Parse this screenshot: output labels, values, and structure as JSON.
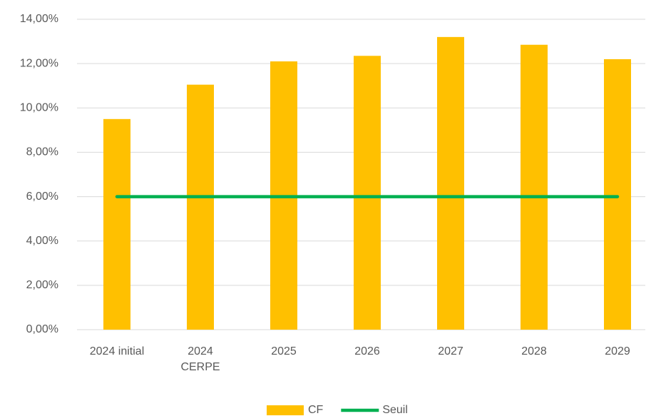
{
  "chart_data": {
    "type": "bar",
    "categories": [
      "2024 initial",
      "2024\nCERPE",
      "2025",
      "2026",
      "2027",
      "2028",
      "2029"
    ],
    "series": [
      {
        "name": "CF",
        "type": "bar",
        "color": "#ffc000",
        "values": [
          9.5,
          11.05,
          12.1,
          12.35,
          13.2,
          12.85,
          12.2
        ]
      },
      {
        "name": "Seuil",
        "type": "line",
        "color": "#00b050",
        "values": [
          6,
          6,
          6,
          6,
          6,
          6,
          6
        ]
      }
    ],
    "ylim": [
      0,
      14
    ],
    "yticks": [
      {
        "value": 0,
        "label": "0,00%"
      },
      {
        "value": 2,
        "label": "2,00%"
      },
      {
        "value": 4,
        "label": "4,00%"
      },
      {
        "value": 6,
        "label": "6,00%"
      },
      {
        "value": 8,
        "label": "8,00%"
      },
      {
        "value": 10,
        "label": "10,00%"
      },
      {
        "value": 12,
        "label": "12,00%"
      },
      {
        "value": 14,
        "label": "14,00%"
      }
    ],
    "grid": true,
    "legend": "bottom"
  }
}
